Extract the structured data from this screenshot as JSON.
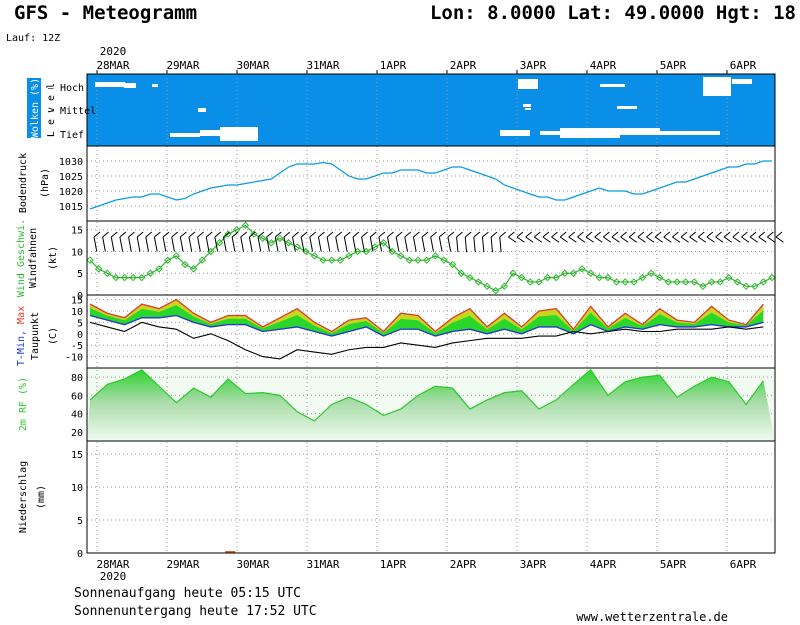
{
  "header": {
    "model_title": "GFS - Meteogramm",
    "location": "Lon: 8.0000 Lat: 49.0000 Hgt: 18",
    "run": "Lauf: 12Z"
  },
  "x_axis": {
    "year": "2020",
    "dates": [
      "28MAR",
      "29MAR",
      "30MAR",
      "31MAR",
      "1APR",
      "2APR",
      "3APR",
      "4APR",
      "5APR",
      "6APR"
    ]
  },
  "panels": {
    "clouds": {
      "label": "Wolken (%)",
      "level_label": "L e v e l",
      "levels": [
        "Hoch",
        "Mittel",
        "Tief"
      ],
      "color": "#0a8fe8"
    },
    "pressure": {
      "label": "Bodendruck",
      "unit": "(hPa)",
      "color": "#0a9be0"
    },
    "wind": {
      "label_speed": "Wind Geschwi.",
      "label_barbs": "Windfahnen",
      "unit": "(kt)",
      "color": "#2fb82f"
    },
    "temp": {
      "label_min": "T-Min,",
      "label_max": "Max",
      "label_dew": "Taupunkt",
      "unit": "(C)"
    },
    "rh": {
      "label": "2m RF (%)",
      "color": "#2cc82c"
    },
    "precip": {
      "label": "Niederschlag",
      "unit": "(mm)"
    }
  },
  "footer": {
    "sunrise": "Sonnenaufgang heute 05:15 UTC",
    "sunset": "Sonnenuntergang heute 17:52 UTC",
    "website": "www.wetterzentrale.de"
  },
  "chart_data": [
    {
      "type": "line",
      "id": "pressure",
      "ylabel": "Bodendruck (hPa)",
      "ylim": [
        1010,
        1035
      ],
      "yticks": [
        1015,
        1020,
        1025,
        1030
      ],
      "x": [
        0,
        0.5,
        1,
        1.5,
        2,
        2.5,
        3,
        3.5,
        4,
        4.5,
        5,
        5.5,
        6,
        6.5,
        7,
        7.5,
        8,
        8.5,
        9,
        9.5,
        10,
        10.5,
        11,
        11.5,
        12,
        12.5,
        13,
        13.5,
        14,
        14.5,
        15,
        15.5,
        16,
        16.5,
        17,
        17.5,
        18,
        18.5,
        19,
        19.5,
        20,
        20.5,
        21,
        21.5,
        22,
        22.5,
        23,
        23.5,
        24,
        24.5,
        25,
        25.5,
        26,
        26.5,
        27,
        27.5,
        28,
        28.5,
        29,
        29.5,
        30,
        30.5,
        31,
        31.5,
        32,
        32.5,
        33,
        33.5,
        34,
        34.5,
        35,
        35.5,
        36,
        36.5,
        37,
        37.5,
        38,
        38.5,
        39,
        39.5
      ],
      "series": [
        {
          "values": [
            1014,
            1015,
            1016,
            1017,
            1017.5,
            1018,
            1018,
            1019,
            1019,
            1018,
            1017,
            1017.5,
            1019,
            1020,
            1021,
            1021.5,
            1022,
            1022,
            1022.5,
            1023,
            1023.5,
            1024,
            1026,
            1028,
            1029,
            1029,
            1029,
            1029.5,
            1029,
            1027,
            1025,
            1024,
            1024,
            1025,
            1026,
            1026,
            1027,
            1027,
            1027,
            1026,
            1026,
            1027,
            1028,
            1028,
            1027,
            1026,
            1025,
            1024,
            1022,
            1021,
            1020,
            1019,
            1018,
            1018,
            1017,
            1017,
            1018,
            1019,
            1020,
            1021,
            1020,
            1020,
            1020,
            1019,
            1019,
            1020,
            1021,
            1022,
            1023,
            1023,
            1024,
            1025,
            1026,
            1027,
            1028,
            1028,
            1029,
            1029,
            1030,
            1030
          ]
        }
      ]
    },
    {
      "type": "line",
      "id": "wind",
      "ylabel": "Wind Geschwi. Windfahnen (kt)",
      "ylim": [
        0,
        17
      ],
      "yticks": [
        0,
        5,
        10,
        15
      ],
      "x": [
        0,
        0.5,
        1,
        1.5,
        2,
        2.5,
        3,
        3.5,
        4,
        4.5,
        5,
        5.5,
        6,
        6.5,
        7,
        7.5,
        8,
        8.5,
        9,
        9.5,
        10,
        10.5,
        11,
        11.5,
        12,
        12.5,
        13,
        13.5,
        14,
        14.5,
        15,
        15.5,
        16,
        16.5,
        17,
        17.5,
        18,
        18.5,
        19,
        19.5,
        20,
        20.5,
        21,
        21.5,
        22,
        22.5,
        23,
        23.5,
        24,
        24.5,
        25,
        25.5,
        26,
        26.5,
        27,
        27.5,
        28,
        28.5,
        29,
        29.5,
        30,
        30.5,
        31,
        31.5,
        32,
        32.5,
        33,
        33.5,
        34,
        34.5,
        35,
        35.5,
        36,
        36.5,
        37,
        37.5,
        38,
        38.5,
        39,
        39.5
      ],
      "series": [
        {
          "name": "Wind Geschwi.",
          "values": [
            8,
            6,
            5,
            4,
            4,
            4,
            4,
            5,
            6,
            8,
            9,
            7,
            6,
            8,
            10,
            12,
            14,
            15,
            16,
            14,
            13,
            12,
            13,
            12,
            11,
            10,
            9,
            8,
            8,
            8,
            9,
            10,
            10,
            11,
            12,
            10,
            9,
            8,
            8,
            8,
            9,
            8,
            7,
            5,
            4,
            3,
            2,
            1,
            2,
            5,
            4,
            3,
            3,
            4,
            4,
            5,
            5,
            6,
            5,
            4,
            4,
            3,
            3,
            3,
            4,
            5,
            4,
            3,
            3,
            3,
            3,
            2,
            3,
            3,
            4,
            3,
            2,
            2,
            3,
            4
          ]
        }
      ]
    },
    {
      "type": "area",
      "id": "temp",
      "ylabel": "T-Min, Max Taupunkt (C)",
      "ylim": [
        -15,
        17
      ],
      "yticks": [
        -10,
        -5,
        0,
        5,
        10,
        15
      ],
      "x": [
        0,
        1,
        2,
        3,
        4,
        5,
        6,
        7,
        8,
        9,
        10,
        11,
        12,
        13,
        14,
        15,
        16,
        17,
        18,
        19,
        20,
        21,
        22,
        23,
        24,
        25,
        26,
        27,
        28,
        29,
        30,
        31,
        32,
        33,
        34,
        35,
        36,
        37,
        38,
        39
      ],
      "series": [
        {
          "name": "Max",
          "values": [
            13,
            9,
            7,
            13,
            11,
            15,
            9,
            5,
            8,
            8,
            3,
            7,
            11,
            5,
            1,
            6,
            7,
            1,
            9,
            8,
            1,
            7,
            11,
            3,
            9,
            3,
            10,
            11,
            2,
            12,
            3,
            9,
            4,
            11,
            6,
            5,
            12,
            6,
            4,
            13
          ]
        },
        {
          "name": "T-Min",
          "values": [
            8,
            6,
            4,
            7,
            7,
            8,
            5,
            3,
            4,
            4,
            1,
            2,
            3,
            1,
            -1,
            1,
            3,
            -1,
            2,
            2,
            -1,
            1,
            2,
            0,
            2,
            0,
            3,
            3,
            0,
            4,
            1,
            3,
            2,
            4,
            3,
            3,
            4,
            3,
            3,
            5
          ]
        },
        {
          "name": "Taupunkt",
          "values": [
            5,
            3,
            1,
            5,
            3,
            2,
            -2,
            0,
            -3,
            -7,
            -10,
            -11,
            -7,
            -8,
            -9,
            -7,
            -6,
            -6,
            -4,
            -5,
            -6,
            -4,
            -3,
            -2,
            -2,
            -2,
            -1,
            -1,
            1,
            0,
            1,
            2,
            1,
            1,
            2,
            2,
            2,
            3,
            2,
            3
          ]
        }
      ]
    },
    {
      "type": "area",
      "id": "rh",
      "ylabel": "2m RF (%)",
      "ylim": [
        10,
        90
      ],
      "yticks": [
        20,
        40,
        60,
        80
      ],
      "x": [
        0,
        1,
        2,
        3,
        4,
        5,
        6,
        7,
        8,
        9,
        10,
        11,
        12,
        13,
        14,
        15,
        16,
        17,
        18,
        19,
        20,
        21,
        22,
        23,
        24,
        25,
        26,
        27,
        28,
        29,
        30,
        31,
        32,
        33,
        34,
        35,
        36,
        37,
        38,
        39
      ],
      "series": [
        {
          "name": "2m RF",
          "values": [
            55,
            72,
            78,
            88,
            70,
            52,
            68,
            58,
            78,
            62,
            63,
            60,
            42,
            32,
            50,
            58,
            50,
            38,
            45,
            60,
            70,
            68,
            45,
            55,
            63,
            65,
            45,
            55,
            72,
            88,
            60,
            75,
            80,
            82,
            58,
            70,
            80,
            75,
            50,
            76
          ]
        }
      ]
    },
    {
      "type": "bar",
      "id": "precip",
      "ylabel": "Niederschlag (mm)",
      "ylim": [
        0,
        17
      ],
      "yticks": [
        0,
        5,
        10,
        15
      ],
      "x": [
        0,
        1,
        2,
        3,
        4,
        5,
        6,
        7,
        8,
        9,
        10,
        11,
        12,
        13,
        14,
        15,
        16,
        17,
        18,
        19,
        20,
        21,
        22,
        23,
        24,
        25,
        26,
        27,
        28,
        29,
        30,
        31,
        32,
        33,
        34,
        35,
        36,
        37,
        38,
        39
      ],
      "series": [
        {
          "name": "Niederschlag",
          "values": [
            0,
            0,
            0,
            0,
            0,
            0,
            0,
            0,
            0.1,
            0,
            0,
            0,
            0,
            0,
            0,
            0,
            0,
            0,
            0,
            0,
            0,
            0,
            0,
            0,
            0,
            0,
            0,
            0,
            0,
            0,
            0,
            0,
            0,
            0,
            0,
            0,
            0,
            0,
            0,
            0
          ]
        }
      ]
    }
  ]
}
